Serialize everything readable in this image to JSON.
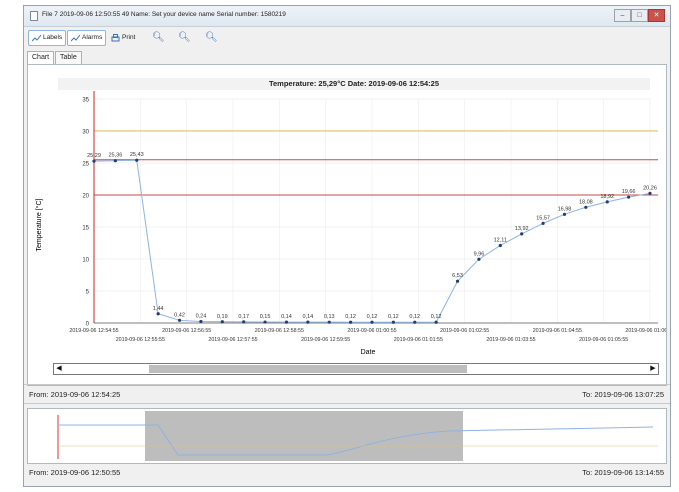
{
  "window": {
    "title": "File 7  2019-09-06 12:50:55  49  Name: Set your device name  Serial number: 1580219",
    "minimize": "–",
    "maximize": "□",
    "close": "✕"
  },
  "toolbar": {
    "labels": "Labels",
    "alarms": "Alarms",
    "print": "Print"
  },
  "tabs": [
    "Chart",
    "Table"
  ],
  "chart": {
    "title": "Temperature: 25,29°C  Date: 2019-09-06  12:54:25",
    "xlabel": "Date",
    "ylabel": "Temperature [°C]"
  },
  "chart_data": {
    "type": "line",
    "title": "Temperature: 25,29°C  Date: 2019-09-06  12:54:25",
    "xlabel": "Date",
    "ylabel": "Temperature [°C]",
    "ylim": [
      0,
      35
    ],
    "yticks": [
      0,
      5,
      10,
      15,
      20,
      25,
      30,
      35
    ],
    "grid": true,
    "x_ticks_top": [
      "2019-09-06 12:54:55",
      "2019-09-06 12:56:55",
      "2019-09-06 12:58:55",
      "2019-09-06 01:00:55",
      "2019-09-06 01:02:55",
      "2019-09-06 01:04:55",
      "2019-09-06 01:06:55"
    ],
    "x_ticks_bottom": [
      "2019-09-06 12:55:55",
      "2019-09-06 12:57:55",
      "2019-09-06 12:59:55",
      "2019-09-06 01:01:55",
      "2019-09-06 01:03:55",
      "2019-09-06 01:05:55"
    ],
    "values": [
      25.29,
      25.36,
      25.43,
      1.44,
      0.42,
      0.24,
      0.19,
      0.17,
      0.15,
      0.14,
      0.14,
      0.13,
      0.12,
      0.12,
      0.12,
      0.12,
      0.12,
      6.53,
      9.96,
      12.11,
      13.92,
      15.57,
      16.98,
      18.08,
      18.92,
      19.66,
      20.26
    ],
    "data_labels": [
      "25,29",
      "25,36",
      "25,43",
      "1,44",
      "0,42",
      "0,24",
      "0,19",
      "0,17",
      "0,15",
      "0,14",
      "0,14",
      "0,13",
      "0,12",
      "0,12",
      "0,12",
      "0,12",
      "0,12",
      "6,53",
      "9,96",
      "12,11",
      "13,92",
      "15,57",
      "16,98",
      "18,08",
      "18,92",
      "19,66",
      "20,26"
    ],
    "limit_lines": [
      {
        "value": 30,
        "color": "#e2b64c"
      },
      {
        "value": 25.5,
        "color": "#c94a4a"
      },
      {
        "value": 20,
        "color": "#c94a4a"
      }
    ],
    "series_color": "#8fb3e0",
    "marker_color": "#1f3f7a"
  },
  "range": {
    "from": "From: 2019-09-06 12:54:25",
    "to": "To: 2019-09-06 13:07:25",
    "overview_from": "From: 2019-09-06 12:50:55",
    "overview_to": "To: 2019-09-06 13:14:55"
  },
  "scroll": {
    "left": "◀",
    "right": "▶"
  }
}
